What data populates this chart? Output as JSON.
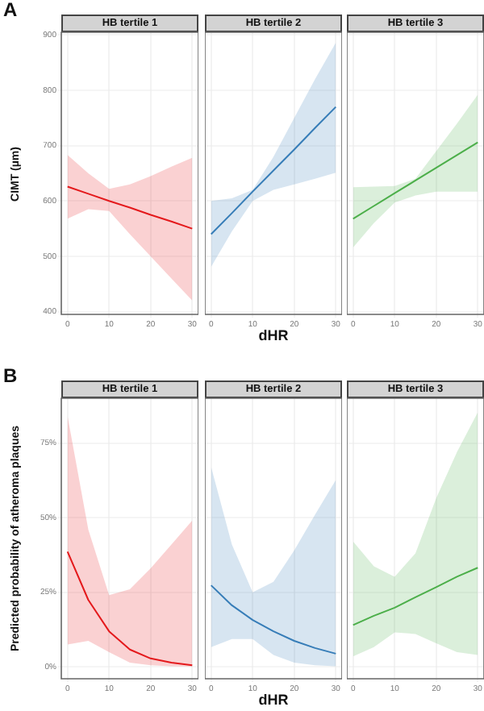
{
  "chart_data": [
    {
      "type": "line",
      "title": "HB tertile 1",
      "ylabel": "CIMT (µm)",
      "annotations": [
        "A"
      ],
      "x": [
        0,
        5,
        10,
        15,
        20,
        25,
        30
      ],
      "series": [
        {
          "color": "#e41a1c",
          "values": [
            626,
            613,
            600,
            588,
            575,
            563,
            550
          ],
          "lower": [
            568,
            585,
            582,
            540,
            500,
            460,
            420
          ],
          "upper": [
            683,
            650,
            622,
            630,
            645,
            662,
            678
          ]
        }
      ],
      "xlim": [
        -1.5,
        31.5
      ],
      "xticks": [
        0,
        10,
        20,
        30
      ],
      "ylim": [
        395,
        905
      ],
      "yticks": [
        400,
        500,
        600,
        700,
        800,
        900
      ],
      "grid": true
    },
    {
      "type": "line",
      "title": "HB tertile 2",
      "xlabel": "dHR",
      "x": [
        0,
        5,
        10,
        15,
        20,
        25,
        30
      ],
      "series": [
        {
          "color": "#377eb8",
          "values": [
            540,
            578,
            617,
            655,
            693,
            732,
            770
          ],
          "lower": [
            481,
            545,
            600,
            620,
            630,
            640,
            651
          ],
          "upper": [
            600,
            605,
            620,
            680,
            750,
            820,
            886
          ]
        }
      ],
      "xlim": [
        -1.5,
        31.5
      ],
      "xticks": [
        0,
        10,
        20,
        30
      ],
      "ylim": [
        395,
        905
      ],
      "yticks": [
        400,
        500,
        600,
        700,
        800,
        900
      ],
      "grid": true,
      "tick_labels": "x"
    },
    {
      "type": "line",
      "title": "HB tertile 3",
      "x": [
        0,
        5,
        10,
        15,
        20,
        25,
        30
      ],
      "series": [
        {
          "color": "#4daf4a",
          "values": [
            568,
            591,
            614,
            637,
            660,
            683,
            706
          ],
          "lower": [
            516,
            560,
            597,
            610,
            617,
            617,
            617
          ],
          "upper": [
            625,
            626,
            627,
            640,
            690,
            740,
            792
          ]
        }
      ],
      "xlim": [
        -1.5,
        31.5
      ],
      "xticks": [
        0,
        10,
        20,
        30
      ],
      "ylim": [
        395,
        905
      ],
      "yticks": [
        400,
        500,
        600,
        700,
        800,
        900
      ],
      "grid": true,
      "tick_labels": "x"
    },
    {
      "type": "line",
      "title": "HB tertile 1",
      "ylabel": "Predicted probability of atheroma plaques",
      "annotations": [
        "B"
      ],
      "x": [
        0,
        5,
        10,
        15,
        20,
        25,
        30
      ],
      "series": [
        {
          "color": "#e41a1c",
          "values": [
            38.6,
            22.4,
            11.9,
            5.8,
            2.8,
            1.4,
            0.5
          ],
          "lower": [
            7.5,
            8.7,
            4.9,
            1.4,
            0.5,
            0.2,
            0.1
          ],
          "upper": [
            84,
            46,
            24,
            26,
            33,
            41,
            49
          ]
        }
      ],
      "xlim": [
        -1.5,
        31.5
      ],
      "xticks": [
        0,
        10,
        20,
        30
      ],
      "ylim": [
        -4,
        90
      ],
      "yticks": [
        {
          "value": 0,
          "label": "0%"
        },
        {
          "value": 25,
          "label": "25%"
        },
        {
          "value": 50,
          "label": "50%"
        },
        {
          "value": 75,
          "label": "75%"
        }
      ],
      "grid": true
    },
    {
      "type": "line",
      "title": "HB tertile 2",
      "xlabel": "dHR",
      "x": [
        0,
        5,
        10,
        15,
        20,
        25,
        30
      ],
      "series": [
        {
          "color": "#377eb8",
          "values": [
            27.3,
            20.6,
            15.7,
            11.9,
            8.7,
            6.3,
            4.4
          ],
          "lower": [
            6.6,
            9.3,
            9.3,
            4,
            1.4,
            0.5,
            0.2
          ],
          "upper": [
            67,
            41,
            25,
            28.5,
            39,
            51,
            62.6
          ]
        }
      ],
      "xlim": [
        -1.5,
        31.5
      ],
      "xticks": [
        0,
        10,
        20,
        30
      ],
      "ylim": [
        -4,
        90
      ],
      "yticks": [
        0,
        25,
        50,
        75
      ],
      "grid": true,
      "tick_labels": "x"
    },
    {
      "type": "line",
      "title": "HB tertile 3",
      "x": [
        0,
        5,
        10,
        15,
        20,
        25,
        30
      ],
      "series": [
        {
          "color": "#4daf4a",
          "values": [
            14,
            17.1,
            19.8,
            23.3,
            26.7,
            30.2,
            33.2
          ],
          "lower": [
            3.5,
            6.6,
            11.5,
            11,
            7.9,
            4.9,
            4
          ],
          "upper": [
            42,
            33.7,
            30.2,
            38,
            56.5,
            72,
            85.3
          ]
        }
      ],
      "xlim": [
        -1.5,
        31.5
      ],
      "xticks": [
        0,
        10,
        20,
        30
      ],
      "ylim": [
        -4,
        90
      ],
      "yticks": [
        0,
        25,
        50,
        75
      ],
      "grid": true,
      "tick_labels": "x"
    }
  ]
}
